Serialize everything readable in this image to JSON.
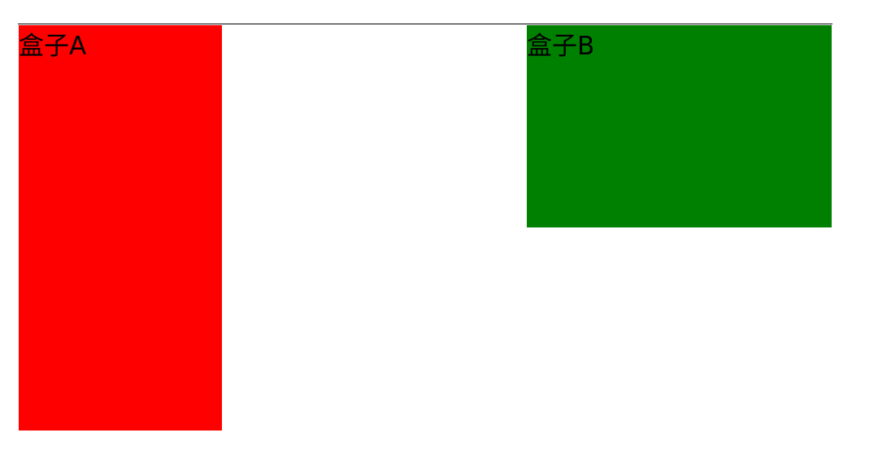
{
  "boxes": {
    "a": {
      "label": "盒子A",
      "color": "#ff0000"
    },
    "b": {
      "label": "盒子B",
      "color": "#008000"
    }
  }
}
